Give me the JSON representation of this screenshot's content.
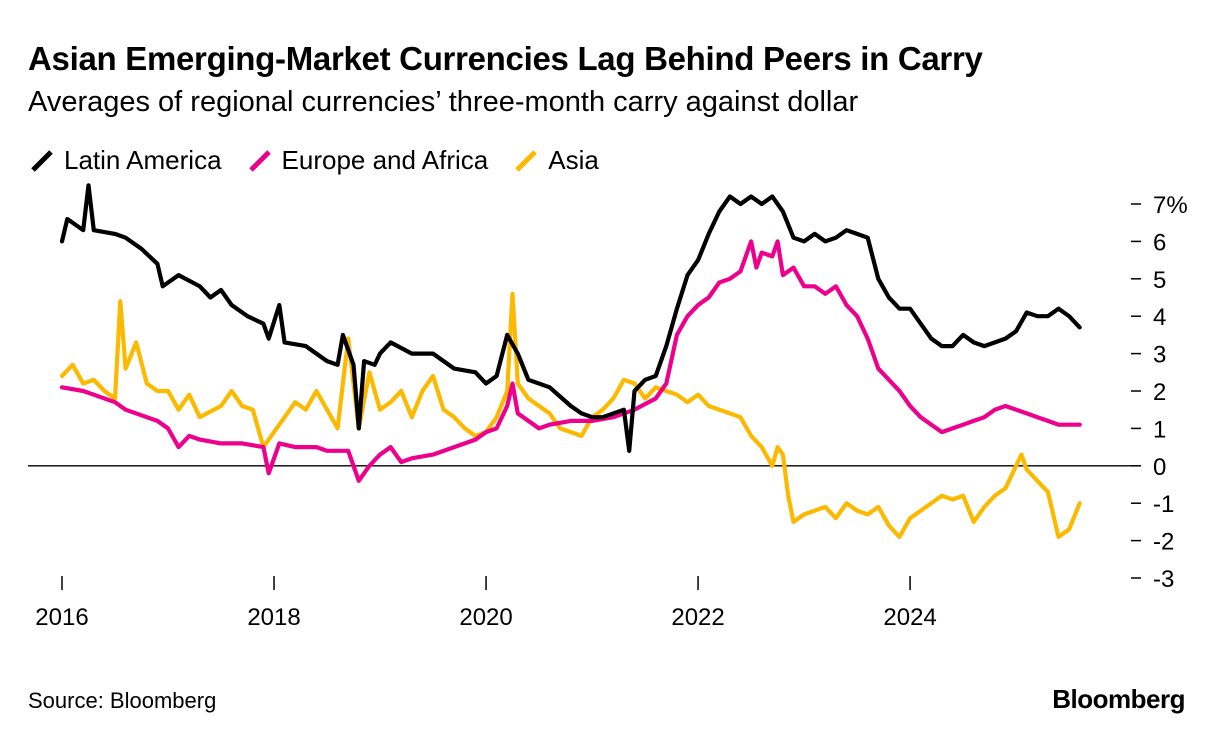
{
  "header": {
    "title": "Asian Emerging-Market Currencies Lag Behind Peers in Carry",
    "subtitle": "Averages of regional currencies’ three-month carry against dollar"
  },
  "legend": [
    {
      "label": "Latin America",
      "color": "#000000"
    },
    {
      "label": "Europe and Africa",
      "color": "#ec008c"
    },
    {
      "label": "Asia",
      "color": "#fcb900"
    }
  ],
  "footer": {
    "source": "Source: Bloomberg",
    "brand": "Bloomberg"
  },
  "chart_data": {
    "type": "line",
    "title": "Asian Emerging-Market Currencies Lag Behind Peers in Carry",
    "subtitle": "Averages of regional currencies’ three-month carry against dollar",
    "xlabel": "",
    "ylabel": "",
    "xlim": [
      2016.0,
      2025.65
    ],
    "ylim": [
      -3,
      7
    ],
    "x_ticks": [
      2016,
      2018,
      2020,
      2022,
      2024
    ],
    "x_tick_labels": [
      "2016",
      "2018",
      "2020",
      "2022",
      "2024"
    ],
    "y_ticks": [
      7,
      6,
      5,
      4,
      3,
      2,
      1,
      0,
      -1,
      -2,
      -3
    ],
    "y_tick_labels": [
      "7%",
      "6",
      "5",
      "4",
      "3",
      "2",
      "1",
      "0",
      "-1",
      "-2",
      "-3"
    ],
    "zero_line": true,
    "series": [
      {
        "name": "Latin America",
        "color": "#000000",
        "points": [
          [
            2016.0,
            6.0
          ],
          [
            2016.05,
            6.6
          ],
          [
            2016.1,
            6.5
          ],
          [
            2016.2,
            6.3
          ],
          [
            2016.25,
            7.5
          ],
          [
            2016.3,
            6.3
          ],
          [
            2016.5,
            6.2
          ],
          [
            2016.6,
            6.1
          ],
          [
            2016.75,
            5.8
          ],
          [
            2016.9,
            5.4
          ],
          [
            2016.95,
            4.8
          ],
          [
            2017.1,
            5.1
          ],
          [
            2017.3,
            4.8
          ],
          [
            2017.4,
            4.5
          ],
          [
            2017.5,
            4.7
          ],
          [
            2017.6,
            4.3
          ],
          [
            2017.75,
            4.0
          ],
          [
            2017.9,
            3.8
          ],
          [
            2017.95,
            3.4
          ],
          [
            2018.05,
            4.3
          ],
          [
            2018.1,
            3.3
          ],
          [
            2018.3,
            3.2
          ],
          [
            2018.5,
            2.8
          ],
          [
            2018.6,
            2.7
          ],
          [
            2018.65,
            3.5
          ],
          [
            2018.75,
            2.7
          ],
          [
            2018.8,
            1.0
          ],
          [
            2018.85,
            2.8
          ],
          [
            2018.95,
            2.7
          ],
          [
            2019.0,
            3.0
          ],
          [
            2019.1,
            3.3
          ],
          [
            2019.3,
            3.0
          ],
          [
            2019.5,
            3.0
          ],
          [
            2019.7,
            2.6
          ],
          [
            2019.9,
            2.5
          ],
          [
            2020.0,
            2.2
          ],
          [
            2020.1,
            2.4
          ],
          [
            2020.2,
            3.5
          ],
          [
            2020.3,
            3.0
          ],
          [
            2020.4,
            2.3
          ],
          [
            2020.6,
            2.1
          ],
          [
            2020.8,
            1.6
          ],
          [
            2020.9,
            1.4
          ],
          [
            2021.0,
            1.3
          ],
          [
            2021.1,
            1.3
          ],
          [
            2021.3,
            1.5
          ],
          [
            2021.35,
            0.4
          ],
          [
            2021.4,
            2.0
          ],
          [
            2021.5,
            2.3
          ],
          [
            2021.6,
            2.4
          ],
          [
            2021.7,
            3.2
          ],
          [
            2021.8,
            4.2
          ],
          [
            2021.9,
            5.1
          ],
          [
            2022.0,
            5.5
          ],
          [
            2022.1,
            6.2
          ],
          [
            2022.2,
            6.8
          ],
          [
            2022.3,
            7.2
          ],
          [
            2022.4,
            7.0
          ],
          [
            2022.5,
            7.2
          ],
          [
            2022.6,
            7.0
          ],
          [
            2022.7,
            7.2
          ],
          [
            2022.8,
            6.8
          ],
          [
            2022.9,
            6.1
          ],
          [
            2023.0,
            6.0
          ],
          [
            2023.1,
            6.2
          ],
          [
            2023.2,
            6.0
          ],
          [
            2023.3,
            6.1
          ],
          [
            2023.4,
            6.3
          ],
          [
            2023.5,
            6.2
          ],
          [
            2023.6,
            6.1
          ],
          [
            2023.7,
            5.0
          ],
          [
            2023.8,
            4.5
          ],
          [
            2023.9,
            4.2
          ],
          [
            2024.0,
            4.2
          ],
          [
            2024.1,
            3.8
          ],
          [
            2024.2,
            3.4
          ],
          [
            2024.3,
            3.2
          ],
          [
            2024.4,
            3.2
          ],
          [
            2024.5,
            3.5
          ],
          [
            2024.6,
            3.3
          ],
          [
            2024.7,
            3.2
          ],
          [
            2024.8,
            3.3
          ],
          [
            2024.9,
            3.4
          ],
          [
            2025.0,
            3.6
          ],
          [
            2025.1,
            4.1
          ],
          [
            2025.2,
            4.0
          ],
          [
            2025.3,
            4.0
          ],
          [
            2025.4,
            4.2
          ],
          [
            2025.5,
            4.0
          ],
          [
            2025.6,
            3.7
          ]
        ]
      },
      {
        "name": "Europe and Africa",
        "color": "#ec008c",
        "points": [
          [
            2016.0,
            2.1
          ],
          [
            2016.2,
            2.0
          ],
          [
            2016.3,
            1.9
          ],
          [
            2016.5,
            1.7
          ],
          [
            2016.6,
            1.5
          ],
          [
            2016.8,
            1.3
          ],
          [
            2016.9,
            1.2
          ],
          [
            2017.0,
            1.0
          ],
          [
            2017.1,
            0.5
          ],
          [
            2017.2,
            0.8
          ],
          [
            2017.3,
            0.7
          ],
          [
            2017.5,
            0.6
          ],
          [
            2017.7,
            0.6
          ],
          [
            2017.9,
            0.5
          ],
          [
            2017.95,
            -0.2
          ],
          [
            2018.05,
            0.6
          ],
          [
            2018.2,
            0.5
          ],
          [
            2018.4,
            0.5
          ],
          [
            2018.5,
            0.4
          ],
          [
            2018.6,
            0.4
          ],
          [
            2018.7,
            0.4
          ],
          [
            2018.8,
            -0.4
          ],
          [
            2018.9,
            0.0
          ],
          [
            2019.0,
            0.3
          ],
          [
            2019.1,
            0.5
          ],
          [
            2019.2,
            0.1
          ],
          [
            2019.3,
            0.2
          ],
          [
            2019.5,
            0.3
          ],
          [
            2019.7,
            0.5
          ],
          [
            2019.9,
            0.7
          ],
          [
            2020.0,
            0.9
          ],
          [
            2020.1,
            1.0
          ],
          [
            2020.2,
            1.6
          ],
          [
            2020.25,
            2.2
          ],
          [
            2020.3,
            1.4
          ],
          [
            2020.4,
            1.2
          ],
          [
            2020.5,
            1.0
          ],
          [
            2020.6,
            1.1
          ],
          [
            2020.8,
            1.2
          ],
          [
            2021.0,
            1.2
          ],
          [
            2021.2,
            1.3
          ],
          [
            2021.4,
            1.5
          ],
          [
            2021.6,
            1.8
          ],
          [
            2021.7,
            2.2
          ],
          [
            2021.8,
            3.5
          ],
          [
            2021.9,
            4.0
          ],
          [
            2022.0,
            4.3
          ],
          [
            2022.1,
            4.5
          ],
          [
            2022.2,
            4.9
          ],
          [
            2022.3,
            5.0
          ],
          [
            2022.4,
            5.2
          ],
          [
            2022.5,
            6.0
          ],
          [
            2022.55,
            5.3
          ],
          [
            2022.6,
            5.7
          ],
          [
            2022.7,
            5.6
          ],
          [
            2022.75,
            6.0
          ],
          [
            2022.8,
            5.1
          ],
          [
            2022.9,
            5.3
          ],
          [
            2023.0,
            4.8
          ],
          [
            2023.1,
            4.8
          ],
          [
            2023.2,
            4.6
          ],
          [
            2023.3,
            4.8
          ],
          [
            2023.4,
            4.3
          ],
          [
            2023.5,
            4.0
          ],
          [
            2023.6,
            3.4
          ],
          [
            2023.7,
            2.6
          ],
          [
            2023.8,
            2.3
          ],
          [
            2023.9,
            2.0
          ],
          [
            2024.0,
            1.6
          ],
          [
            2024.1,
            1.3
          ],
          [
            2024.2,
            1.1
          ],
          [
            2024.3,
            0.9
          ],
          [
            2024.4,
            1.0
          ],
          [
            2024.5,
            1.1
          ],
          [
            2024.6,
            1.2
          ],
          [
            2024.7,
            1.3
          ],
          [
            2024.8,
            1.5
          ],
          [
            2024.9,
            1.6
          ],
          [
            2025.0,
            1.5
          ],
          [
            2025.1,
            1.4
          ],
          [
            2025.2,
            1.3
          ],
          [
            2025.3,
            1.2
          ],
          [
            2025.4,
            1.1
          ],
          [
            2025.5,
            1.1
          ],
          [
            2025.6,
            1.1
          ]
        ]
      },
      {
        "name": "Asia",
        "color": "#fcb900",
        "points": [
          [
            2016.0,
            2.4
          ],
          [
            2016.1,
            2.7
          ],
          [
            2016.2,
            2.2
          ],
          [
            2016.3,
            2.3
          ],
          [
            2016.4,
            2.0
          ],
          [
            2016.5,
            1.8
          ],
          [
            2016.55,
            4.4
          ],
          [
            2016.6,
            2.6
          ],
          [
            2016.7,
            3.3
          ],
          [
            2016.8,
            2.2
          ],
          [
            2016.9,
            2.0
          ],
          [
            2017.0,
            2.0
          ],
          [
            2017.1,
            1.5
          ],
          [
            2017.2,
            1.9
          ],
          [
            2017.3,
            1.3
          ],
          [
            2017.5,
            1.6
          ],
          [
            2017.6,
            2.0
          ],
          [
            2017.7,
            1.6
          ],
          [
            2017.8,
            1.5
          ],
          [
            2017.9,
            0.5
          ],
          [
            2018.0,
            0.9
          ],
          [
            2018.1,
            1.3
          ],
          [
            2018.2,
            1.7
          ],
          [
            2018.3,
            1.5
          ],
          [
            2018.4,
            2.0
          ],
          [
            2018.5,
            1.5
          ],
          [
            2018.6,
            1.0
          ],
          [
            2018.7,
            3.4
          ],
          [
            2018.8,
            1.0
          ],
          [
            2018.9,
            2.5
          ],
          [
            2019.0,
            1.5
          ],
          [
            2019.1,
            1.7
          ],
          [
            2019.2,
            2.0
          ],
          [
            2019.3,
            1.3
          ],
          [
            2019.4,
            2.0
          ],
          [
            2019.5,
            2.4
          ],
          [
            2019.6,
            1.5
          ],
          [
            2019.7,
            1.3
          ],
          [
            2019.8,
            1.0
          ],
          [
            2019.9,
            0.8
          ],
          [
            2020.0,
            0.9
          ],
          [
            2020.1,
            1.3
          ],
          [
            2020.2,
            2.0
          ],
          [
            2020.25,
            4.6
          ],
          [
            2020.3,
            2.2
          ],
          [
            2020.4,
            1.8
          ],
          [
            2020.5,
            1.6
          ],
          [
            2020.6,
            1.4
          ],
          [
            2020.7,
            1.0
          ],
          [
            2020.8,
            0.9
          ],
          [
            2020.9,
            0.8
          ],
          [
            2021.0,
            1.3
          ],
          [
            2021.1,
            1.5
          ],
          [
            2021.2,
            1.8
          ],
          [
            2021.3,
            2.3
          ],
          [
            2021.4,
            2.2
          ],
          [
            2021.5,
            1.8
          ],
          [
            2021.6,
            2.1
          ],
          [
            2021.7,
            2.0
          ],
          [
            2021.8,
            1.9
          ],
          [
            2021.9,
            1.7
          ],
          [
            2022.0,
            1.9
          ],
          [
            2022.1,
            1.6
          ],
          [
            2022.2,
            1.5
          ],
          [
            2022.3,
            1.4
          ],
          [
            2022.4,
            1.3
          ],
          [
            2022.5,
            0.8
          ],
          [
            2022.6,
            0.5
          ],
          [
            2022.7,
            0.0
          ],
          [
            2022.75,
            0.5
          ],
          [
            2022.8,
            0.3
          ],
          [
            2022.85,
            -0.8
          ],
          [
            2022.9,
            -1.5
          ],
          [
            2023.0,
            -1.3
          ],
          [
            2023.1,
            -1.2
          ],
          [
            2023.2,
            -1.1
          ],
          [
            2023.3,
            -1.4
          ],
          [
            2023.4,
            -1.0
          ],
          [
            2023.5,
            -1.2
          ],
          [
            2023.6,
            -1.3
          ],
          [
            2023.7,
            -1.1
          ],
          [
            2023.8,
            -1.6
          ],
          [
            2023.9,
            -1.9
          ],
          [
            2024.0,
            -1.4
          ],
          [
            2024.1,
            -1.2
          ],
          [
            2024.2,
            -1.0
          ],
          [
            2024.3,
            -0.8
          ],
          [
            2024.4,
            -0.9
          ],
          [
            2024.5,
            -0.8
          ],
          [
            2024.6,
            -1.5
          ],
          [
            2024.7,
            -1.1
          ],
          [
            2024.8,
            -0.8
          ],
          [
            2024.9,
            -0.6
          ],
          [
            2025.0,
            0.0
          ],
          [
            2025.05,
            0.3
          ],
          [
            2025.1,
            -0.1
          ],
          [
            2025.2,
            -0.4
          ],
          [
            2025.3,
            -0.7
          ],
          [
            2025.4,
            -1.9
          ],
          [
            2025.5,
            -1.7
          ],
          [
            2025.6,
            -1.0
          ]
        ]
      }
    ]
  }
}
